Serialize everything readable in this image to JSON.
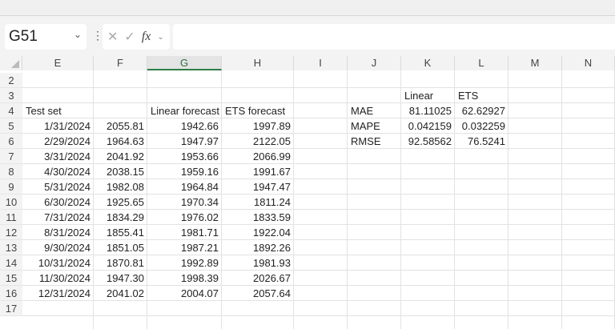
{
  "formula_bar": {
    "name_box": "G51",
    "fx_label": "fx",
    "formula": ""
  },
  "columns": [
    "E",
    "F",
    "G",
    "H",
    "I",
    "J",
    "K",
    "L",
    "M",
    "N"
  ],
  "selected_column": "G",
  "rows": [
    "2",
    "3",
    "4",
    "5",
    "6",
    "7",
    "8",
    "9",
    "10",
    "11",
    "12",
    "13",
    "14",
    "15",
    "16",
    "17"
  ],
  "test_table": {
    "headers": [
      "Test set",
      "",
      "Linear forecast",
      "ETS forecast"
    ],
    "rows": [
      [
        "1/31/2024",
        "2055.81",
        "1942.66",
        "1997.89"
      ],
      [
        "2/29/2024",
        "1964.63",
        "1947.97",
        "2122.05"
      ],
      [
        "3/31/2024",
        "2041.92",
        "1953.66",
        "2066.99"
      ],
      [
        "4/30/2024",
        "2038.15",
        "1959.16",
        "1991.67"
      ],
      [
        "5/31/2024",
        "1982.08",
        "1964.84",
        "1947.47"
      ],
      [
        "6/30/2024",
        "1925.65",
        "1970.34",
        "1811.24"
      ],
      [
        "7/31/2024",
        "1834.29",
        "1976.02",
        "1833.59"
      ],
      [
        "8/31/2024",
        "1855.41",
        "1981.71",
        "1922.04"
      ],
      [
        "9/30/2024",
        "1851.05",
        "1987.21",
        "1892.26"
      ],
      [
        "10/31/2024",
        "1870.81",
        "1992.89",
        "1981.93"
      ],
      [
        "11/30/2024",
        "1947.30",
        "1998.39",
        "2026.67"
      ],
      [
        "12/31/2024",
        "2041.02",
        "2004.07",
        "2057.64"
      ]
    ]
  },
  "metrics": {
    "headers": [
      "Linear",
      "ETS"
    ],
    "rows": [
      [
        "MAE",
        "81.11025",
        "62.62927"
      ],
      [
        "MAPE",
        "0.042159",
        "0.032259"
      ],
      [
        "RMSE",
        "92.58562",
        "76.5241"
      ]
    ]
  }
}
